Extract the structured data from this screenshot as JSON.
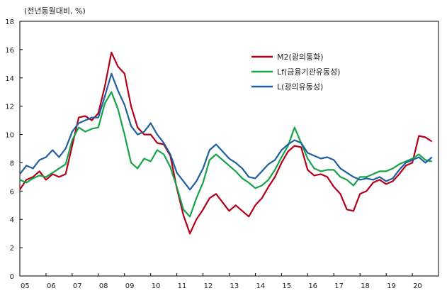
{
  "chart_data": {
    "type": "line",
    "title": "",
    "unit_label": "(전년동월대비, %)",
    "xlabel": "",
    "ylabel": "",
    "ylim": [
      0,
      18
    ],
    "yticks": [
      0,
      2,
      4,
      6,
      8,
      10,
      12,
      14,
      16,
      18
    ],
    "xlim": [
      2005,
      2021
    ],
    "xtick_labels": [
      "05",
      "06",
      "07",
      "08",
      "09",
      "10",
      "11",
      "12",
      "13",
      "14",
      "15",
      "16",
      "17",
      "18",
      "19",
      "20"
    ],
    "grid": false,
    "legend_position": "top-center",
    "series": [
      {
        "name": "M2(광의통화)",
        "color": "#b3001b",
        "points": [
          [
            2005.0,
            6.1
          ],
          [
            2005.25,
            6.8
          ],
          [
            2005.5,
            7.0
          ],
          [
            2005.75,
            7.4
          ],
          [
            2006.0,
            6.8
          ],
          [
            2006.25,
            7.2
          ],
          [
            2006.5,
            7.0
          ],
          [
            2006.75,
            7.2
          ],
          [
            2007.0,
            9.2
          ],
          [
            2007.25,
            11.2
          ],
          [
            2007.5,
            11.3
          ],
          [
            2007.75,
            11.0
          ],
          [
            2008.0,
            11.5
          ],
          [
            2008.25,
            13.4
          ],
          [
            2008.5,
            15.8
          ],
          [
            2008.75,
            14.8
          ],
          [
            2009.0,
            14.3
          ],
          [
            2009.25,
            12.0
          ],
          [
            2009.5,
            10.5
          ],
          [
            2009.75,
            10.0
          ],
          [
            2010.0,
            10.0
          ],
          [
            2010.25,
            9.4
          ],
          [
            2010.5,
            9.3
          ],
          [
            2010.75,
            8.5
          ],
          [
            2011.0,
            6.2
          ],
          [
            2011.25,
            4.3
          ],
          [
            2011.5,
            3.0
          ],
          [
            2011.75,
            4.0
          ],
          [
            2012.0,
            4.7
          ],
          [
            2012.25,
            5.5
          ],
          [
            2012.5,
            5.8
          ],
          [
            2012.75,
            5.2
          ],
          [
            2013.0,
            4.6
          ],
          [
            2013.25,
            5.0
          ],
          [
            2013.5,
            4.6
          ],
          [
            2013.75,
            4.2
          ],
          [
            2014.0,
            5.0
          ],
          [
            2014.25,
            5.5
          ],
          [
            2014.5,
            6.3
          ],
          [
            2014.75,
            7.0
          ],
          [
            2015.0,
            8.0
          ],
          [
            2015.25,
            8.8
          ],
          [
            2015.5,
            9.2
          ],
          [
            2015.75,
            9.1
          ],
          [
            2016.0,
            7.5
          ],
          [
            2016.25,
            7.1
          ],
          [
            2016.5,
            7.2
          ],
          [
            2016.75,
            7.0
          ],
          [
            2017.0,
            6.3
          ],
          [
            2017.25,
            5.8
          ],
          [
            2017.5,
            4.7
          ],
          [
            2017.75,
            4.6
          ],
          [
            2018.0,
            5.8
          ],
          [
            2018.25,
            6.0
          ],
          [
            2018.5,
            6.6
          ],
          [
            2018.75,
            6.8
          ],
          [
            2019.0,
            6.5
          ],
          [
            2019.25,
            6.7
          ],
          [
            2019.5,
            7.2
          ],
          [
            2019.75,
            7.8
          ],
          [
            2020.0,
            8.0
          ],
          [
            2020.25,
            9.9
          ],
          [
            2020.5,
            9.8
          ],
          [
            2020.75,
            9.5
          ]
        ]
      },
      {
        "name": "Lf(금융기관유동성)",
        "color": "#16a34a",
        "points": [
          [
            2005.0,
            6.8
          ],
          [
            2005.25,
            6.6
          ],
          [
            2005.5,
            6.9
          ],
          [
            2005.75,
            7.1
          ],
          [
            2006.0,
            7.0
          ],
          [
            2006.25,
            7.3
          ],
          [
            2006.5,
            7.6
          ],
          [
            2006.75,
            7.9
          ],
          [
            2007.0,
            9.6
          ],
          [
            2007.25,
            10.5
          ],
          [
            2007.5,
            10.2
          ],
          [
            2007.75,
            10.4
          ],
          [
            2008.0,
            10.5
          ],
          [
            2008.25,
            12.2
          ],
          [
            2008.5,
            13.0
          ],
          [
            2008.75,
            11.8
          ],
          [
            2009.0,
            10.0
          ],
          [
            2009.25,
            8.0
          ],
          [
            2009.5,
            7.6
          ],
          [
            2009.75,
            8.3
          ],
          [
            2010.0,
            8.1
          ],
          [
            2010.25,
            8.9
          ],
          [
            2010.5,
            8.6
          ],
          [
            2010.75,
            7.7
          ],
          [
            2011.0,
            6.3
          ],
          [
            2011.25,
            4.7
          ],
          [
            2011.5,
            4.2
          ],
          [
            2011.75,
            5.5
          ],
          [
            2012.0,
            6.6
          ],
          [
            2012.25,
            8.2
          ],
          [
            2012.5,
            8.6
          ],
          [
            2012.75,
            8.2
          ],
          [
            2013.0,
            7.8
          ],
          [
            2013.25,
            7.4
          ],
          [
            2013.5,
            6.9
          ],
          [
            2013.75,
            6.6
          ],
          [
            2014.0,
            6.2
          ],
          [
            2014.25,
            6.4
          ],
          [
            2014.5,
            6.8
          ],
          [
            2014.75,
            7.5
          ],
          [
            2015.0,
            8.4
          ],
          [
            2015.25,
            9.2
          ],
          [
            2015.5,
            10.5
          ],
          [
            2015.75,
            9.4
          ],
          [
            2016.0,
            8.3
          ],
          [
            2016.25,
            7.6
          ],
          [
            2016.5,
            7.4
          ],
          [
            2016.75,
            7.5
          ],
          [
            2017.0,
            7.5
          ],
          [
            2017.25,
            7.0
          ],
          [
            2017.5,
            6.8
          ],
          [
            2017.75,
            6.4
          ],
          [
            2018.0,
            7.0
          ],
          [
            2018.25,
            7.0
          ],
          [
            2018.5,
            7.2
          ],
          [
            2018.75,
            7.4
          ],
          [
            2019.0,
            7.4
          ],
          [
            2019.25,
            7.6
          ],
          [
            2019.5,
            7.9
          ],
          [
            2019.75,
            8.1
          ],
          [
            2020.0,
            8.3
          ],
          [
            2020.25,
            8.6
          ],
          [
            2020.5,
            8.2
          ],
          [
            2020.75,
            8.1
          ]
        ]
      },
      {
        "name": "L(광의유동성)",
        "color": "#1f5f9e",
        "points": [
          [
            2005.0,
            7.2
          ],
          [
            2005.25,
            7.8
          ],
          [
            2005.5,
            7.6
          ],
          [
            2005.75,
            8.2
          ],
          [
            2006.0,
            8.4
          ],
          [
            2006.25,
            8.9
          ],
          [
            2006.5,
            8.4
          ],
          [
            2006.75,
            9.0
          ],
          [
            2007.0,
            10.2
          ],
          [
            2007.25,
            10.8
          ],
          [
            2007.5,
            11.0
          ],
          [
            2007.75,
            11.2
          ],
          [
            2008.0,
            11.2
          ],
          [
            2008.25,
            12.7
          ],
          [
            2008.5,
            14.3
          ],
          [
            2008.75,
            13.1
          ],
          [
            2009.0,
            12.1
          ],
          [
            2009.25,
            10.6
          ],
          [
            2009.5,
            10.0
          ],
          [
            2009.75,
            10.2
          ],
          [
            2010.0,
            10.8
          ],
          [
            2010.25,
            10.0
          ],
          [
            2010.5,
            9.4
          ],
          [
            2010.75,
            8.6
          ],
          [
            2011.0,
            7.3
          ],
          [
            2011.25,
            6.7
          ],
          [
            2011.5,
            6.1
          ],
          [
            2011.75,
            6.7
          ],
          [
            2012.0,
            7.6
          ],
          [
            2012.25,
            8.9
          ],
          [
            2012.5,
            9.3
          ],
          [
            2012.75,
            8.8
          ],
          [
            2013.0,
            8.3
          ],
          [
            2013.25,
            8.0
          ],
          [
            2013.5,
            7.6
          ],
          [
            2013.75,
            7.0
          ],
          [
            2014.0,
            6.9
          ],
          [
            2014.25,
            7.4
          ],
          [
            2014.5,
            7.9
          ],
          [
            2014.75,
            8.2
          ],
          [
            2015.0,
            8.9
          ],
          [
            2015.25,
            9.3
          ],
          [
            2015.5,
            9.6
          ],
          [
            2015.75,
            9.4
          ],
          [
            2016.0,
            8.7
          ],
          [
            2016.25,
            8.5
          ],
          [
            2016.5,
            8.3
          ],
          [
            2016.75,
            8.4
          ],
          [
            2017.0,
            8.2
          ],
          [
            2017.25,
            7.6
          ],
          [
            2017.5,
            7.3
          ],
          [
            2017.75,
            7.0
          ],
          [
            2018.0,
            6.8
          ],
          [
            2018.25,
            6.9
          ],
          [
            2018.5,
            6.8
          ],
          [
            2018.75,
            7.0
          ],
          [
            2019.0,
            6.7
          ],
          [
            2019.25,
            6.9
          ],
          [
            2019.5,
            7.5
          ],
          [
            2019.75,
            8.0
          ],
          [
            2020.0,
            8.2
          ],
          [
            2020.25,
            8.4
          ],
          [
            2020.5,
            8.0
          ],
          [
            2020.75,
            8.4
          ]
        ]
      }
    ]
  }
}
